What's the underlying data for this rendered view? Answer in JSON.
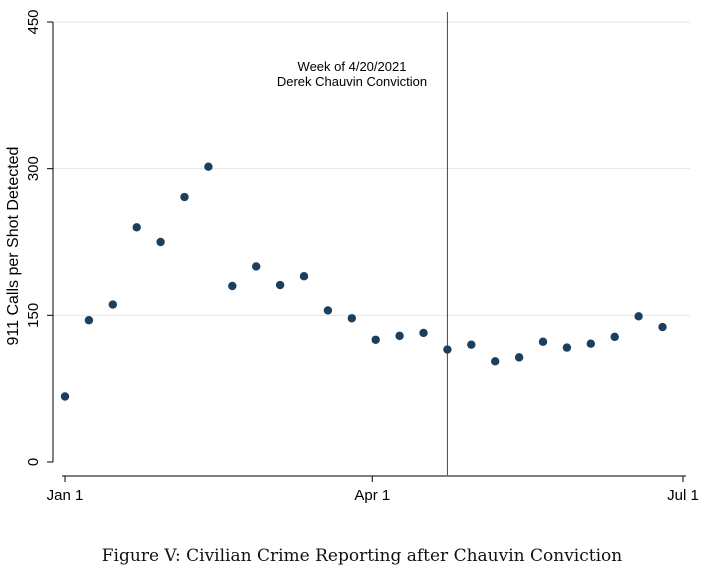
{
  "caption": "Figure V: Civilian Crime Reporting after Chauvin Conviction",
  "chart_data": {
    "type": "scatter",
    "title": "",
    "ylabel": "911 Calls per Shot Detected",
    "xlabel": "",
    "ylim": [
      0,
      450
    ],
    "yticks": [
      0,
      150,
      300,
      450
    ],
    "xlim": [
      "2021-01-01",
      "2021-07-01"
    ],
    "xticks": [
      {
        "date": "2021-01-01",
        "label": "Jan 1"
      },
      {
        "date": "2021-04-01",
        "label": "Apr 1"
      },
      {
        "date": "2021-07-01",
        "label": "Jul 1"
      }
    ],
    "grid": true,
    "marker_color": "#1c3f5e",
    "points": [
      {
        "x": "2021-01-01",
        "y": 67
      },
      {
        "x": "2021-01-08",
        "y": 145
      },
      {
        "x": "2021-01-15",
        "y": 161
      },
      {
        "x": "2021-01-22",
        "y": 240
      },
      {
        "x": "2021-01-29",
        "y": 225
      },
      {
        "x": "2021-02-05",
        "y": 271
      },
      {
        "x": "2021-02-12",
        "y": 302
      },
      {
        "x": "2021-02-19",
        "y": 180
      },
      {
        "x": "2021-02-26",
        "y": 200
      },
      {
        "x": "2021-03-05",
        "y": 181
      },
      {
        "x": "2021-03-12",
        "y": 190
      },
      {
        "x": "2021-03-19",
        "y": 155
      },
      {
        "x": "2021-03-26",
        "y": 147
      },
      {
        "x": "2021-04-02",
        "y": 125
      },
      {
        "x": "2021-04-09",
        "y": 129
      },
      {
        "x": "2021-04-16",
        "y": 132
      },
      {
        "x": "2021-04-23",
        "y": 115
      },
      {
        "x": "2021-04-30",
        "y": 120
      },
      {
        "x": "2021-05-07",
        "y": 103
      },
      {
        "x": "2021-05-14",
        "y": 107
      },
      {
        "x": "2021-05-21",
        "y": 123
      },
      {
        "x": "2021-05-28",
        "y": 117
      },
      {
        "x": "2021-06-04",
        "y": 121
      },
      {
        "x": "2021-06-11",
        "y": 128
      },
      {
        "x": "2021-06-18",
        "y": 149
      },
      {
        "x": "2021-06-25",
        "y": 138
      }
    ],
    "event_line": {
      "date": "2021-04-23",
      "color": "#9b1b4a",
      "label_line1": "Week of 4/20/2021",
      "label_line2": "Derek Chauvin Conviction"
    }
  }
}
